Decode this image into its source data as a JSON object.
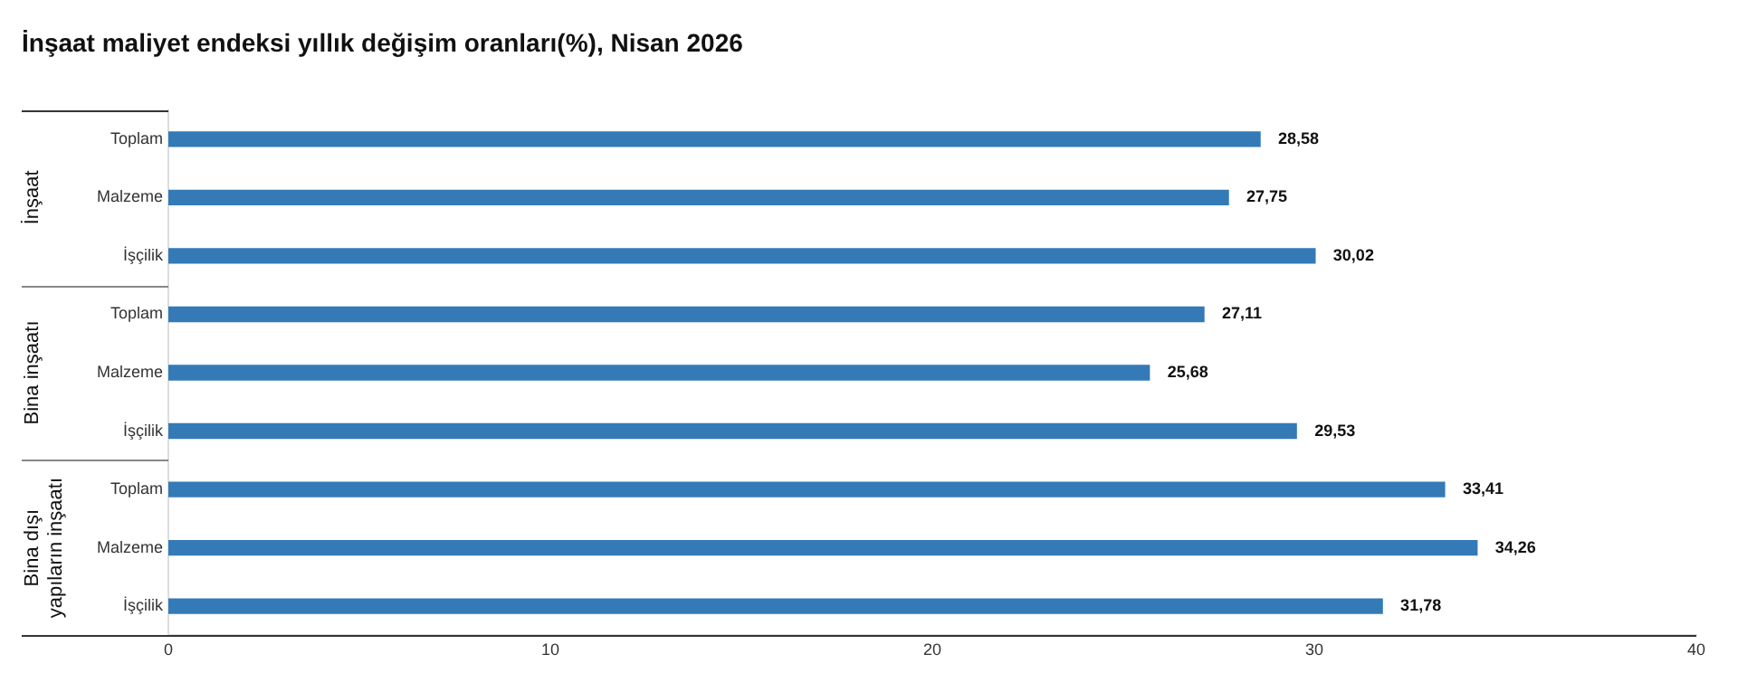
{
  "chart_data": {
    "type": "bar",
    "orientation": "horizontal",
    "title": "İnşaat maliyet endeksi yıllık değişim oranları(%), Nisan 2026",
    "categories": [
      "Toplam",
      "Malzeme",
      "İşçilik",
      "Toplam",
      "Malzeme",
      "İşçilik",
      "Toplam",
      "Malzeme",
      "İşçilik"
    ],
    "values": [
      28.58,
      27.75,
      30.02,
      27.11,
      25.68,
      29.53,
      33.41,
      34.26,
      31.78
    ],
    "value_labels": [
      "28,58",
      "27,75",
      "30,02",
      "27,11",
      "25,68",
      "29,53",
      "33,41",
      "34,26",
      "31,78"
    ],
    "color": "#337ab7",
    "xlim": [
      0,
      40
    ],
    "xticks": [
      0,
      10,
      20,
      30,
      40
    ],
    "grid": false,
    "legend": false,
    "annotations": [
      "İnşaat",
      "Bina inşaatı",
      "Bina dışı\nyapıların inşaatı"
    ]
  }
}
